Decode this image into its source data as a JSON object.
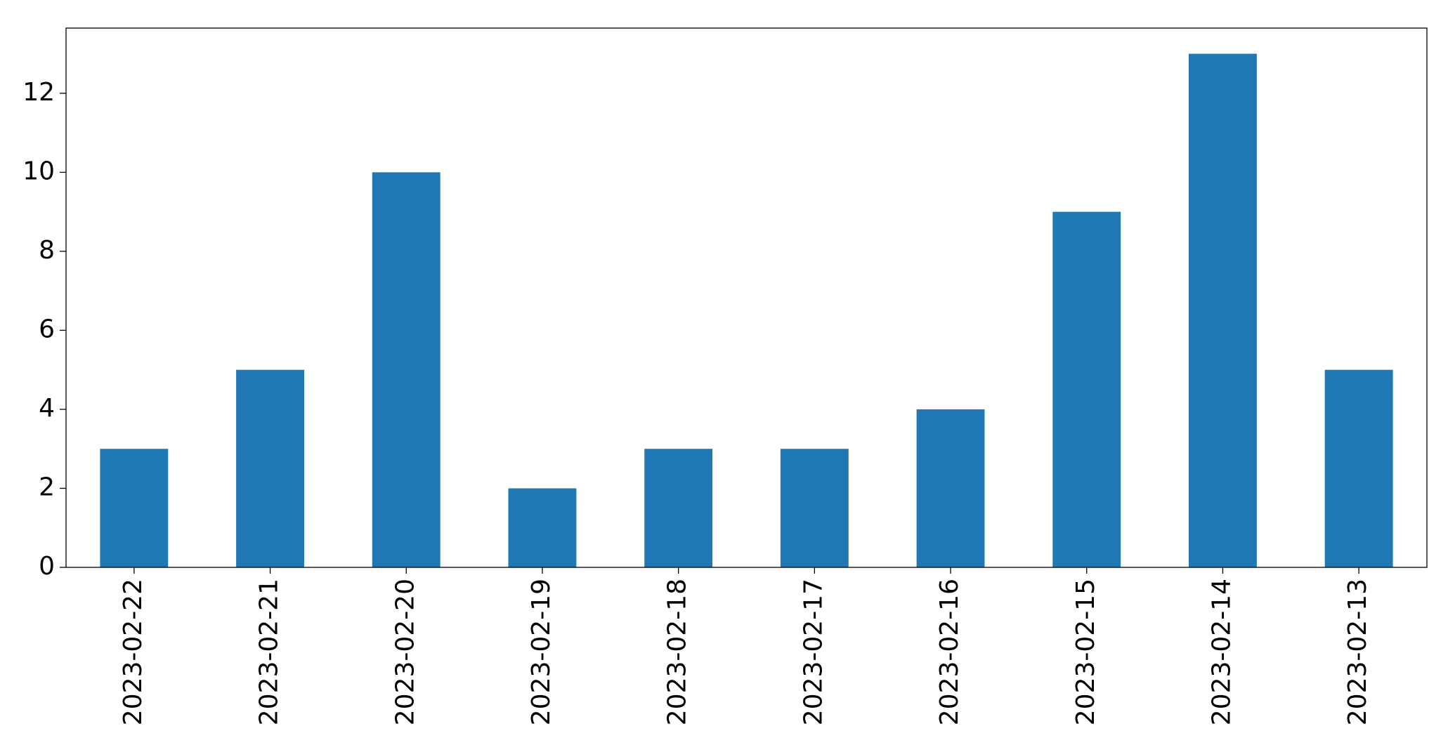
{
  "chart_data": {
    "type": "bar",
    "categories": [
      "2023-02-22",
      "2023-02-21",
      "2023-02-20",
      "2023-02-19",
      "2023-02-18",
      "2023-02-17",
      "2023-02-16",
      "2023-02-15",
      "2023-02-14",
      "2023-02-13"
    ],
    "values": [
      3,
      5,
      10,
      2,
      3,
      3,
      4,
      9,
      13,
      5
    ],
    "color": "#1f77b4",
    "ylim": [
      0,
      13.65
    ],
    "yticks": [
      0,
      2,
      4,
      6,
      8,
      10,
      12
    ],
    "grid": false
  }
}
